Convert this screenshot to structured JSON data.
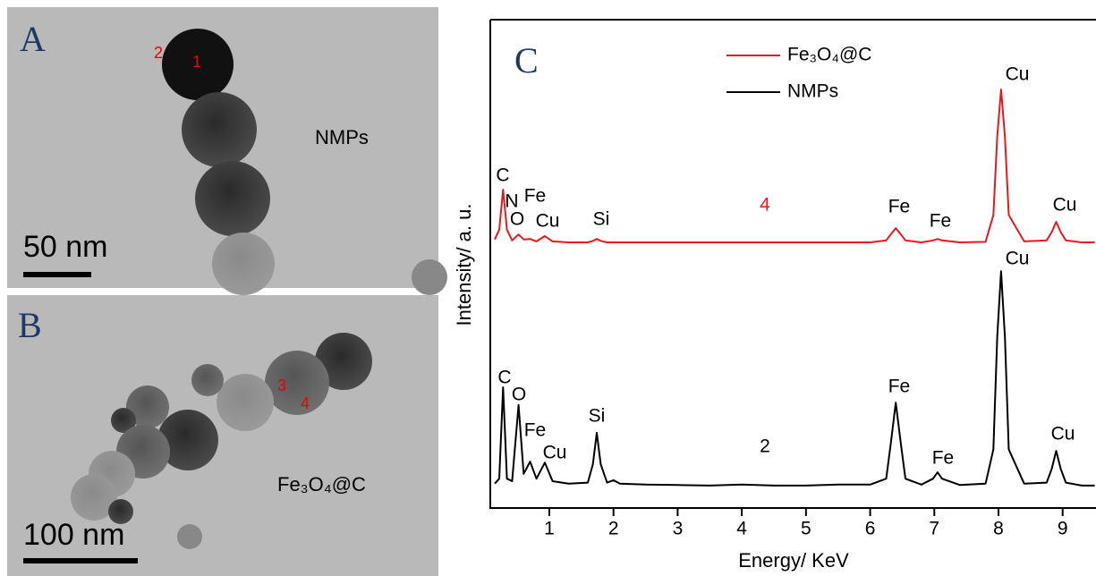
{
  "panels": [
    {
      "label": "A",
      "sample": "NMPs",
      "scale_bar": "50 nm",
      "points": [
        "1",
        "2"
      ]
    },
    {
      "label": "B",
      "sample": "Fe₃O₄@C",
      "scale_bar": "100 nm",
      "points": [
        "3",
        "4"
      ]
    }
  ],
  "chart_data": {
    "type": "line",
    "panel_label": "C",
    "xlabel": "Energy/ KeV",
    "ylabel": "Intensity/ a. u.",
    "xlim": [
      0.08,
      9.52
    ],
    "ylim": [
      0,
      100
    ],
    "xticks": [
      1,
      2,
      3,
      4,
      5,
      6,
      7,
      8,
      9
    ],
    "x": [
      0.15,
      0.22,
      0.28,
      0.34,
      0.42,
      0.52,
      0.6,
      0.7,
      0.8,
      0.93,
      1.05,
      1.3,
      1.6,
      1.68,
      1.74,
      1.8,
      1.9,
      2.0,
      2.1,
      2.5,
      3,
      3.5,
      4,
      4.5,
      5,
      5.5,
      6.0,
      6.25,
      6.32,
      6.4,
      6.48,
      6.55,
      6.8,
      6.98,
      7.05,
      7.12,
      7.4,
      7.8,
      7.92,
      7.98,
      8.04,
      8.1,
      8.16,
      8.4,
      8.75,
      8.83,
      8.9,
      8.97,
      9.05,
      9.3,
      9.5
    ],
    "series": [
      {
        "name": "Fe₃O₄@C",
        "color": "#e8191c",
        "values": [
          55,
          57,
          65.2,
          57,
          54.8,
          56,
          55,
          55.1,
          54.6,
          55.7,
          54.6,
          54.4,
          54.4,
          54.7,
          55.1,
          54.7,
          54.4,
          54.4,
          54.4,
          54.4,
          54.4,
          54.4,
          54.4,
          54.4,
          54.4,
          54.4,
          54.4,
          54.8,
          56,
          57.3,
          56,
          54.8,
          54.4,
          54.8,
          55.1,
          54.8,
          54.4,
          54.5,
          60,
          76,
          85.7,
          76,
          60,
          54.6,
          54.8,
          56.5,
          58.6,
          56.5,
          54.8,
          54.4,
          54.4
        ],
        "annotations": [
          "C",
          "N",
          "Fe",
          "O",
          "Cu",
          "Si",
          "4",
          "Fe",
          "Fe",
          "Cu",
          "Cu"
        ]
      },
      {
        "name": "NMPs",
        "color": "#000000",
        "values": [
          5,
          6,
          24.7,
          6,
          5.5,
          21.1,
          7,
          9.5,
          6,
          9.3,
          5.5,
          5,
          5.2,
          9,
          15.4,
          9,
          5.2,
          5.7,
          5,
          4.8,
          4.7,
          4.6,
          4.8,
          4.6,
          4.6,
          4.8,
          4.8,
          6,
          13,
          21.6,
          13,
          6,
          4.8,
          6,
          7.3,
          6,
          4.7,
          5,
          12,
          35,
          48.5,
          35,
          12,
          5,
          5.2,
          8,
          11.7,
          8,
          5.2,
          4.6,
          4.6
        ],
        "annotations": [
          "C",
          "O",
          "Fe",
          "Cu",
          "Si",
          "2",
          "Fe",
          "Fe",
          "Cu",
          "Cu"
        ]
      }
    ]
  }
}
